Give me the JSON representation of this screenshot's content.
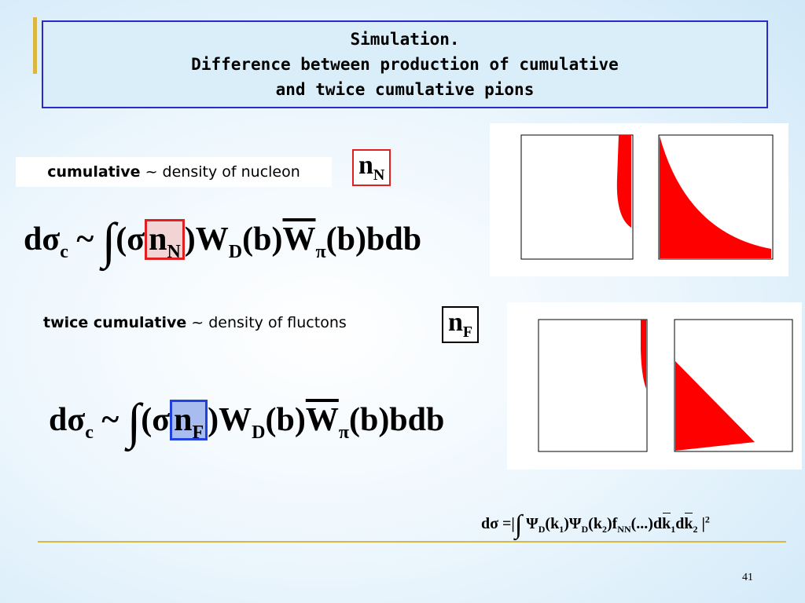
{
  "title": [
    "Simulation.",
    "Difference between production of cumulative",
    "and twice cumulative pions"
  ],
  "cumulative": {
    "term": "cumulative",
    "rest": "~ density of nucleon",
    "symbol": "n",
    "symbol_sub": "N"
  },
  "formula_1": {
    "d_sigma": "dσ",
    "d_sigma_sub": "c",
    "tilde": "~",
    "integral": "∫",
    "open": "(σ",
    "n": "n",
    "n_sub": "N",
    "close_w": ")W",
    "w_sub": "D",
    "b1": "(b)",
    "w_bar": "W",
    "w_bar_sub": "π",
    "tail": "(b)bdb"
  },
  "twice_cumulative": {
    "term": "twice cumulative",
    "rest": "~ density of fluctons",
    "symbol": "n",
    "symbol_sub": "F"
  },
  "formula_2": {
    "d_sigma": "dσ",
    "d_sigma_sub": "c",
    "tilde": "~",
    "integral": "∫",
    "open": "(σ",
    "n": "n",
    "n_sub": "F",
    "close_w": ")W",
    "w_sub": "D",
    "b1": "(b)",
    "w_bar": "W",
    "w_bar_sub": "π",
    "tail": "(b)bdb"
  },
  "formula_3": {
    "lhs": "dσ =|",
    "integral": "∫",
    "psi1": "Ψ",
    "psi1_sub": "D",
    "k1": "(k",
    "k1_sub": "1",
    "psi2_open": ")Ψ",
    "psi2_sub": "D",
    "k2": "(k",
    "k2_sub": "2",
    "f": ")f",
    "f_sub": "NN",
    "dots": "(...)d",
    "dk1": "k",
    "dk1_sub": "1",
    "d2": "d",
    "dk2": "k",
    "dk2_sub": "2",
    "end": "|",
    "power": "2"
  },
  "page_number": "41"
}
